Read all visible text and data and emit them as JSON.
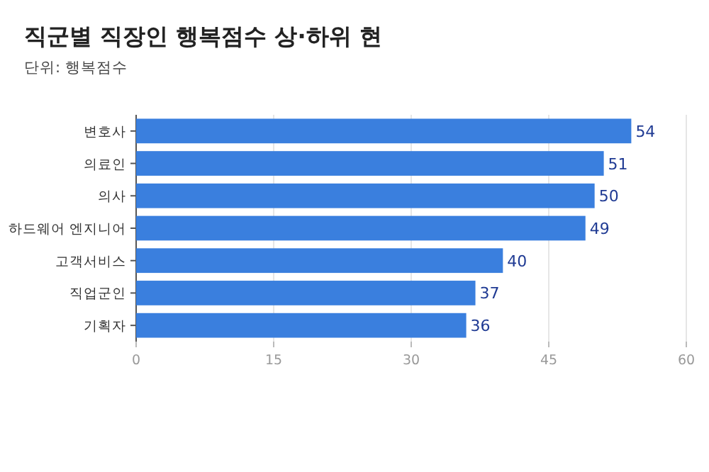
{
  "chart_data": {
    "type": "bar",
    "orientation": "horizontal",
    "title": "직군별 직장인 행복점수 상·하위 현",
    "subtitle": "단위: 행복점수",
    "categories": [
      "변호사",
      "의료인",
      "의사",
      "하드웨어 엔지니어",
      "고객서비스",
      "직업군인",
      "기획자"
    ],
    "values": [
      54,
      51,
      50,
      49,
      40,
      37,
      36
    ],
    "color": "#3a7fde",
    "xlim": [
      0,
      60
    ],
    "xticks": [
      0,
      15,
      30,
      45,
      60
    ],
    "grid": "x",
    "data_labels": true
  }
}
